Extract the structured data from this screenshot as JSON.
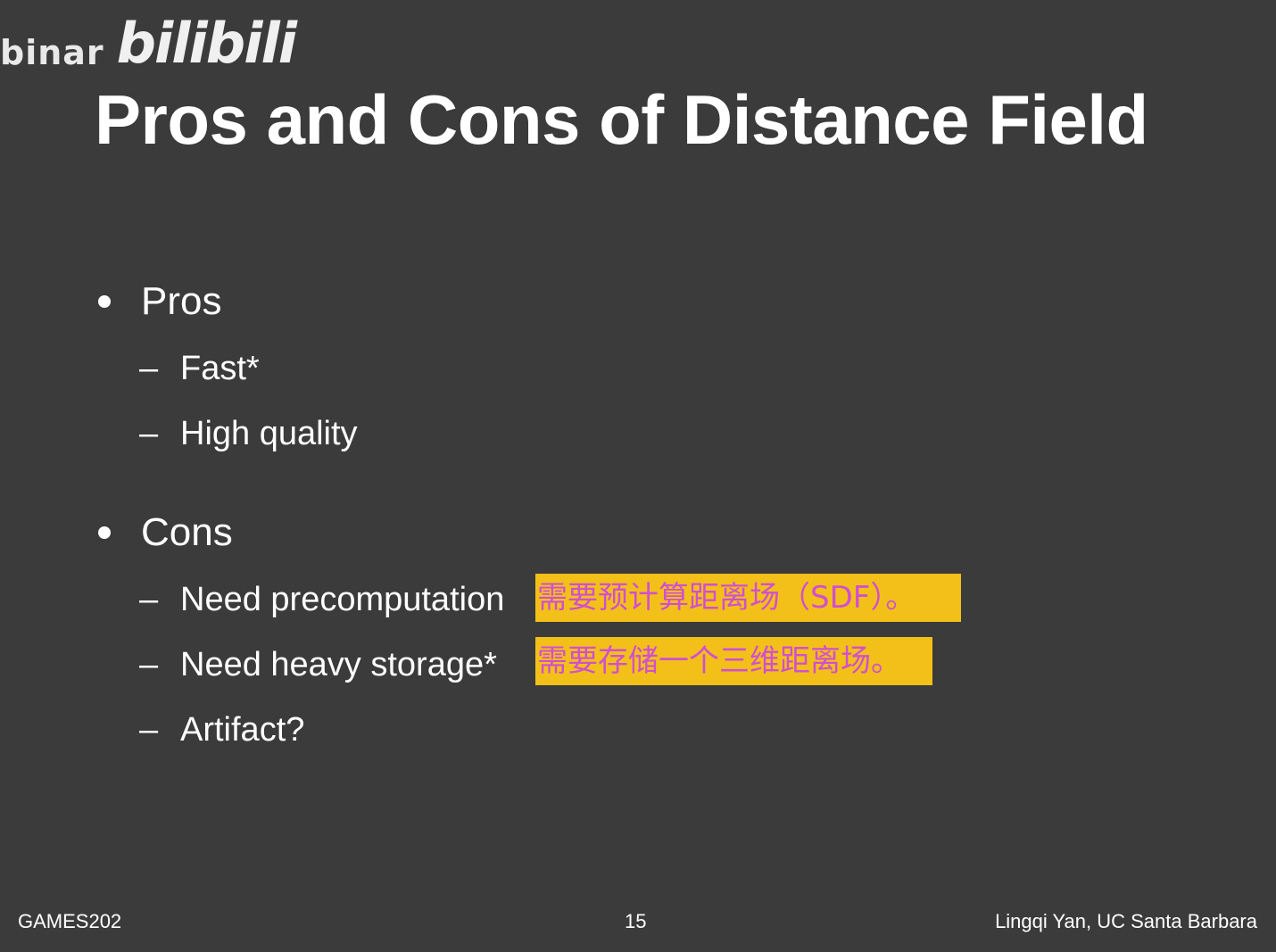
{
  "watermark": {
    "text": "binar",
    "logo": "bilibili"
  },
  "slide": {
    "title": "Pros and Cons of Distance Field",
    "sections": [
      {
        "heading": "Pros",
        "items": [
          "Fast*",
          "High quality"
        ]
      },
      {
        "heading": "Cons",
        "items": [
          "Need precomputation",
          "Need heavy storage*",
          "Artifact?"
        ]
      }
    ],
    "subtitles": [
      "需要预计算距离场（SDF）。",
      "需要存储一个三维距离场。"
    ]
  },
  "footer": {
    "left": "GAMES202",
    "center": "15",
    "right": "Lingqi Yan, UC Santa Barbara"
  },
  "colors": {
    "background": "#3b3b3b",
    "text": "#ffffff",
    "highlight_bg": "#f2c019",
    "highlight_text": "#d14fd0"
  }
}
